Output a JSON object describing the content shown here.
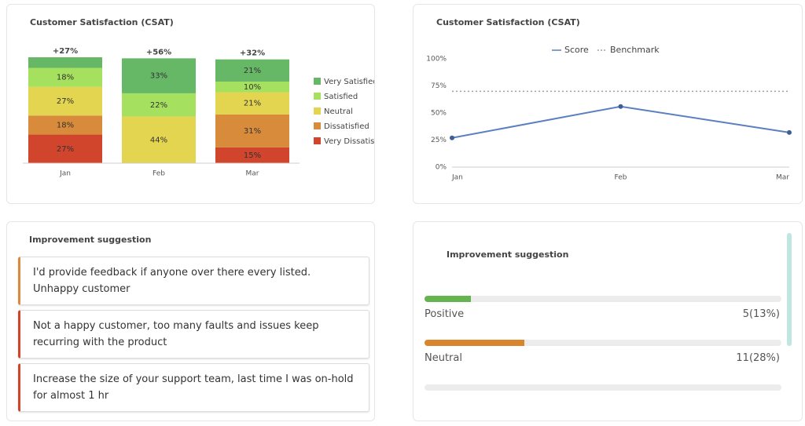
{
  "chart_data": [
    {
      "type": "stacked-bar",
      "title": "Customer Satisfaction (CSAT)",
      "categories": [
        "Jan",
        "Feb",
        "Mar"
      ],
      "annotations": [
        "+27%",
        "+56%",
        "+32%"
      ],
      "ylim": [
        0,
        100
      ],
      "series": [
        {
          "name": "Very Satisfied",
          "color": "#66b867",
          "values": [
            10,
            33,
            21
          ],
          "value_labels": [
            null,
            "33%",
            "21%"
          ]
        },
        {
          "name": "Satisfied",
          "color": "#a6e05f",
          "values": [
            18,
            22,
            10
          ],
          "value_labels": [
            "18%",
            "22%",
            "10%"
          ]
        },
        {
          "name": "Neutral",
          "color": "#e3d54f",
          "values": [
            27,
            44,
            21
          ],
          "value_labels": [
            "27%",
            "44%",
            "21%"
          ]
        },
        {
          "name": "Dissatisfied",
          "color": "#d88b3a",
          "values": [
            18,
            0,
            31
          ],
          "value_labels": [
            "18%",
            null,
            "31%"
          ]
        },
        {
          "name": "Very Dissatisfied",
          "color": "#d0452c",
          "values": [
            27,
            0,
            15
          ],
          "value_labels": [
            "27%",
            null,
            "15%"
          ]
        }
      ]
    },
    {
      "type": "line",
      "title": "Customer Satisfaction (CSAT)",
      "categories": [
        "Jan",
        "Feb",
        "Mar"
      ],
      "ylim": [
        0,
        100
      ],
      "yticks": [
        {
          "value": 0,
          "label": "0%"
        },
        {
          "value": 25,
          "label": "25%"
        },
        {
          "value": 50,
          "label": "50%"
        },
        {
          "value": 75,
          "label": "75%"
        },
        {
          "value": 100,
          "label": "100%"
        }
      ],
      "series": [
        {
          "name": "Score",
          "color": "#5b7fbf",
          "values": [
            27,
            56,
            32
          ]
        },
        {
          "name": "Benchmark",
          "color": "#9aa0a8",
          "dashed": true,
          "values": [
            70,
            70,
            70
          ]
        }
      ]
    }
  ],
  "suggestions": {
    "title": "Improvement suggestion",
    "items": [
      {
        "text": "I'd provide feedback if anyone over there every listed. Unhappy customer",
        "color": "#d88b3a"
      },
      {
        "text": "Not a happy customer, too many faults and issues keep recurring with the product",
        "color": "#d0452c"
      },
      {
        "text": "Increase the size of your support team, last time I was on-hold for almost 1 hr",
        "color": "#d0452c"
      }
    ]
  },
  "sentiment": {
    "title": "Improvement suggestion",
    "items": [
      {
        "name": "Positive",
        "value": 13,
        "value_label": "5(13%)",
        "color": "#66b450"
      },
      {
        "name": "Neutral",
        "value": 28,
        "value_label": "11(28%)",
        "color": "#d8852e"
      }
    ]
  }
}
